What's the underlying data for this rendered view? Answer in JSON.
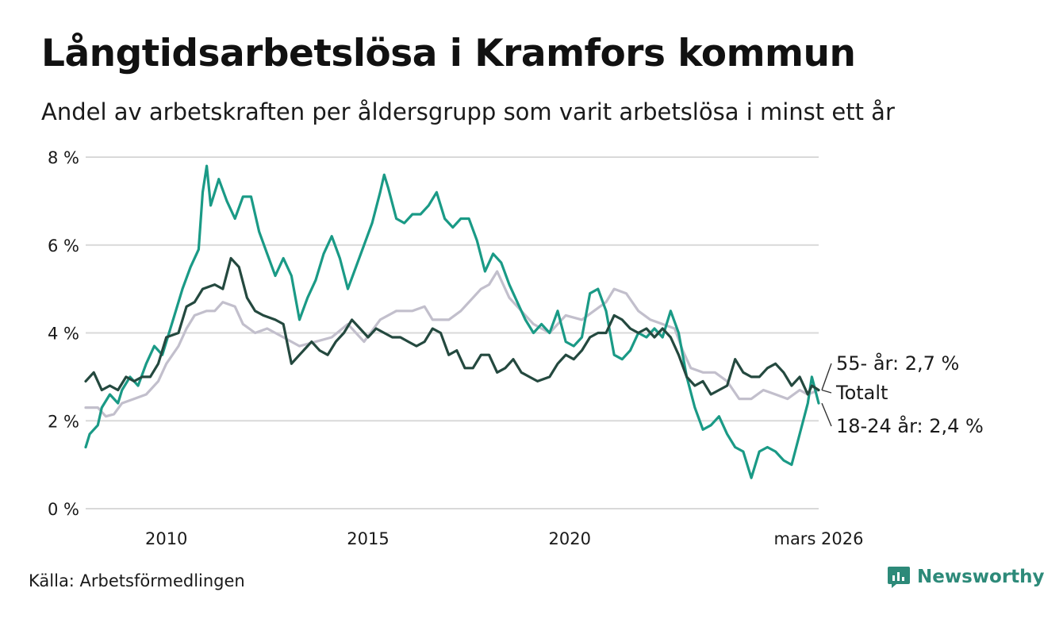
{
  "header": {
    "title": "Långtidsarbetslösa i Kramfors kommun",
    "subtitle": "Andel av arbetskraften per åldersgrupp som varit arbetslösa i minst ett år"
  },
  "footer": {
    "source": "Källa: Arbetsförmedlingen",
    "brand": "Newsworthy"
  },
  "colors": {
    "youth": "#1a9a86",
    "total": "#24493f",
    "senior": "#c2bfcc",
    "grid": "#d9d9d9",
    "brand": "#2d8a79"
  },
  "chart_data": {
    "type": "line",
    "title": "Långtidsarbetslösa i Kramfors kommun",
    "subtitle": "Andel av arbetskraften per åldersgrupp som varit arbetslösa i minst ett år",
    "xlim": [
      2008.0,
      2026.17
    ],
    "ylim": [
      0,
      8
    ],
    "grid": true,
    "y_ticks": [
      {
        "value": 0,
        "label": "0 %"
      },
      {
        "value": 2,
        "label": "2 %"
      },
      {
        "value": 4,
        "label": "4 %"
      },
      {
        "value": 6,
        "label": "6 %"
      },
      {
        "value": 8,
        "label": "8 %"
      }
    ],
    "x_ticks": [
      {
        "value": 2010,
        "label": "2010"
      },
      {
        "value": 2015,
        "label": "2015"
      },
      {
        "value": 2020,
        "label": "2020"
      },
      {
        "value": 2026.17,
        "label": "mars 2026"
      }
    ],
    "series": [
      {
        "name": "55- år",
        "end_label": "55- år: 2,7 %",
        "color_key": "senior",
        "points": [
          [
            2008.0,
            2.3
          ],
          [
            2008.3,
            2.3
          ],
          [
            2008.5,
            2.1
          ],
          [
            2008.7,
            2.15
          ],
          [
            2008.9,
            2.4
          ],
          [
            2009.2,
            2.5
          ],
          [
            2009.5,
            2.6
          ],
          [
            2009.8,
            2.9
          ],
          [
            2010.0,
            3.3
          ],
          [
            2010.3,
            3.7
          ],
          [
            2010.5,
            4.1
          ],
          [
            2010.7,
            4.4
          ],
          [
            2011.0,
            4.5
          ],
          [
            2011.2,
            4.5
          ],
          [
            2011.4,
            4.7
          ],
          [
            2011.7,
            4.6
          ],
          [
            2011.9,
            4.2
          ],
          [
            2012.2,
            4.0
          ],
          [
            2012.5,
            4.1
          ],
          [
            2012.9,
            3.9
          ],
          [
            2013.3,
            3.7
          ],
          [
            2013.7,
            3.8
          ],
          [
            2014.1,
            3.9
          ],
          [
            2014.5,
            4.2
          ],
          [
            2014.9,
            3.8
          ],
          [
            2015.3,
            4.3
          ],
          [
            2015.7,
            4.5
          ],
          [
            2016.1,
            4.5
          ],
          [
            2016.4,
            4.6
          ],
          [
            2016.6,
            4.3
          ],
          [
            2017.0,
            4.3
          ],
          [
            2017.3,
            4.5
          ],
          [
            2017.6,
            4.8
          ],
          [
            2017.8,
            5.0
          ],
          [
            2018.0,
            5.1
          ],
          [
            2018.2,
            5.4
          ],
          [
            2018.5,
            4.8
          ],
          [
            2018.8,
            4.5
          ],
          [
            2019.1,
            4.2
          ],
          [
            2019.5,
            4.0
          ],
          [
            2019.9,
            4.4
          ],
          [
            2020.3,
            4.3
          ],
          [
            2020.6,
            4.5
          ],
          [
            2020.9,
            4.7
          ],
          [
            2021.1,
            5.0
          ],
          [
            2021.4,
            4.9
          ],
          [
            2021.7,
            4.5
          ],
          [
            2022.0,
            4.3
          ],
          [
            2022.3,
            4.2
          ],
          [
            2022.6,
            4.1
          ],
          [
            2022.8,
            3.6
          ],
          [
            2023.0,
            3.2
          ],
          [
            2023.3,
            3.1
          ],
          [
            2023.6,
            3.1
          ],
          [
            2023.9,
            2.9
          ],
          [
            2024.2,
            2.5
          ],
          [
            2024.5,
            2.5
          ],
          [
            2024.8,
            2.7
          ],
          [
            2025.1,
            2.6
          ],
          [
            2025.4,
            2.5
          ],
          [
            2025.7,
            2.7
          ],
          [
            2025.9,
            2.6
          ],
          [
            2026.17,
            2.7
          ]
        ]
      },
      {
        "name": "18-24 år",
        "end_label": "18-24 år: 2,4 %",
        "color_key": "youth",
        "points": [
          [
            2008.0,
            1.4
          ],
          [
            2008.1,
            1.7
          ],
          [
            2008.3,
            1.9
          ],
          [
            2008.4,
            2.3
          ],
          [
            2008.6,
            2.6
          ],
          [
            2008.8,
            2.4
          ],
          [
            2008.9,
            2.7
          ],
          [
            2009.1,
            3.0
          ],
          [
            2009.3,
            2.8
          ],
          [
            2009.5,
            3.3
          ],
          [
            2009.7,
            3.7
          ],
          [
            2009.9,
            3.5
          ],
          [
            2010.0,
            3.8
          ],
          [
            2010.2,
            4.4
          ],
          [
            2010.4,
            5.0
          ],
          [
            2010.6,
            5.5
          ],
          [
            2010.8,
            5.9
          ],
          [
            2010.9,
            7.2
          ],
          [
            2011.0,
            7.8
          ],
          [
            2011.1,
            6.9
          ],
          [
            2011.3,
            7.5
          ],
          [
            2011.5,
            7.0
          ],
          [
            2011.7,
            6.6
          ],
          [
            2011.9,
            7.1
          ],
          [
            2012.1,
            7.1
          ],
          [
            2012.3,
            6.3
          ],
          [
            2012.5,
            5.8
          ],
          [
            2012.7,
            5.3
          ],
          [
            2012.9,
            5.7
          ],
          [
            2013.1,
            5.3
          ],
          [
            2013.3,
            4.3
          ],
          [
            2013.5,
            4.8
          ],
          [
            2013.7,
            5.2
          ],
          [
            2013.9,
            5.8
          ],
          [
            2014.1,
            6.2
          ],
          [
            2014.3,
            5.7
          ],
          [
            2014.5,
            5.0
          ],
          [
            2014.7,
            5.5
          ],
          [
            2014.9,
            6.0
          ],
          [
            2015.1,
            6.5
          ],
          [
            2015.3,
            7.2
          ],
          [
            2015.4,
            7.6
          ],
          [
            2015.5,
            7.3
          ],
          [
            2015.7,
            6.6
          ],
          [
            2015.9,
            6.5
          ],
          [
            2016.1,
            6.7
          ],
          [
            2016.3,
            6.7
          ],
          [
            2016.5,
            6.9
          ],
          [
            2016.7,
            7.2
          ],
          [
            2016.9,
            6.6
          ],
          [
            2017.1,
            6.4
          ],
          [
            2017.3,
            6.6
          ],
          [
            2017.5,
            6.6
          ],
          [
            2017.7,
            6.1
          ],
          [
            2017.9,
            5.4
          ],
          [
            2018.1,
            5.8
          ],
          [
            2018.3,
            5.6
          ],
          [
            2018.5,
            5.1
          ],
          [
            2018.7,
            4.7
          ],
          [
            2018.9,
            4.3
          ],
          [
            2019.1,
            4.0
          ],
          [
            2019.3,
            4.2
          ],
          [
            2019.5,
            4.0
          ],
          [
            2019.7,
            4.5
          ],
          [
            2019.9,
            3.8
          ],
          [
            2020.1,
            3.7
          ],
          [
            2020.3,
            3.9
          ],
          [
            2020.5,
            4.9
          ],
          [
            2020.7,
            5.0
          ],
          [
            2020.9,
            4.5
          ],
          [
            2021.1,
            3.5
          ],
          [
            2021.3,
            3.4
          ],
          [
            2021.5,
            3.6
          ],
          [
            2021.7,
            4.0
          ],
          [
            2021.9,
            3.9
          ],
          [
            2022.1,
            4.1
          ],
          [
            2022.3,
            3.9
          ],
          [
            2022.5,
            4.5
          ],
          [
            2022.7,
            4.0
          ],
          [
            2022.9,
            3.0
          ],
          [
            2023.1,
            2.3
          ],
          [
            2023.3,
            1.8
          ],
          [
            2023.5,
            1.9
          ],
          [
            2023.7,
            2.1
          ],
          [
            2023.9,
            1.7
          ],
          [
            2024.1,
            1.4
          ],
          [
            2024.3,
            1.3
          ],
          [
            2024.5,
            0.7
          ],
          [
            2024.7,
            1.3
          ],
          [
            2024.9,
            1.4
          ],
          [
            2025.1,
            1.3
          ],
          [
            2025.3,
            1.1
          ],
          [
            2025.5,
            1.0
          ],
          [
            2025.7,
            1.7
          ],
          [
            2025.9,
            2.4
          ],
          [
            2026.0,
            3.0
          ],
          [
            2026.17,
            2.4
          ]
        ]
      },
      {
        "name": "Totalt",
        "end_label": "Totalt",
        "color_key": "total",
        "points": [
          [
            2008.0,
            2.9
          ],
          [
            2008.2,
            3.1
          ],
          [
            2008.4,
            2.7
          ],
          [
            2008.6,
            2.8
          ],
          [
            2008.8,
            2.7
          ],
          [
            2009.0,
            3.0
          ],
          [
            2009.2,
            2.9
          ],
          [
            2009.4,
            3.0
          ],
          [
            2009.6,
            3.0
          ],
          [
            2009.8,
            3.3
          ],
          [
            2010.0,
            3.9
          ],
          [
            2010.3,
            4.0
          ],
          [
            2010.5,
            4.6
          ],
          [
            2010.7,
            4.7
          ],
          [
            2010.9,
            5.0
          ],
          [
            2011.2,
            5.1
          ],
          [
            2011.4,
            5.0
          ],
          [
            2011.6,
            5.7
          ],
          [
            2011.8,
            5.5
          ],
          [
            2012.0,
            4.8
          ],
          [
            2012.2,
            4.5
          ],
          [
            2012.4,
            4.4
          ],
          [
            2012.7,
            4.3
          ],
          [
            2012.9,
            4.2
          ],
          [
            2013.1,
            3.3
          ],
          [
            2013.3,
            3.5
          ],
          [
            2013.6,
            3.8
          ],
          [
            2013.8,
            3.6
          ],
          [
            2014.0,
            3.5
          ],
          [
            2014.2,
            3.8
          ],
          [
            2014.4,
            4.0
          ],
          [
            2014.6,
            4.3
          ],
          [
            2014.8,
            4.1
          ],
          [
            2015.0,
            3.9
          ],
          [
            2015.2,
            4.1
          ],
          [
            2015.4,
            4.0
          ],
          [
            2015.6,
            3.9
          ],
          [
            2015.8,
            3.9
          ],
          [
            2016.0,
            3.8
          ],
          [
            2016.2,
            3.7
          ],
          [
            2016.4,
            3.8
          ],
          [
            2016.6,
            4.1
          ],
          [
            2016.8,
            4.0
          ],
          [
            2017.0,
            3.5
          ],
          [
            2017.2,
            3.6
          ],
          [
            2017.4,
            3.2
          ],
          [
            2017.6,
            3.2
          ],
          [
            2017.8,
            3.5
          ],
          [
            2018.0,
            3.5
          ],
          [
            2018.2,
            3.1
          ],
          [
            2018.4,
            3.2
          ],
          [
            2018.6,
            3.4
          ],
          [
            2018.8,
            3.1
          ],
          [
            2019.0,
            3.0
          ],
          [
            2019.2,
            2.9
          ],
          [
            2019.5,
            3.0
          ],
          [
            2019.7,
            3.3
          ],
          [
            2019.9,
            3.5
          ],
          [
            2020.1,
            3.4
          ],
          [
            2020.3,
            3.6
          ],
          [
            2020.5,
            3.9
          ],
          [
            2020.7,
            4.0
          ],
          [
            2020.9,
            4.0
          ],
          [
            2021.1,
            4.4
          ],
          [
            2021.3,
            4.3
          ],
          [
            2021.5,
            4.1
          ],
          [
            2021.7,
            4.0
          ],
          [
            2021.9,
            4.1
          ],
          [
            2022.1,
            3.9
          ],
          [
            2022.3,
            4.1
          ],
          [
            2022.5,
            3.9
          ],
          [
            2022.7,
            3.5
          ],
          [
            2022.9,
            3.0
          ],
          [
            2023.1,
            2.8
          ],
          [
            2023.3,
            2.9
          ],
          [
            2023.5,
            2.6
          ],
          [
            2023.7,
            2.7
          ],
          [
            2023.9,
            2.8
          ],
          [
            2024.1,
            3.4
          ],
          [
            2024.3,
            3.1
          ],
          [
            2024.5,
            3.0
          ],
          [
            2024.7,
            3.0
          ],
          [
            2024.9,
            3.2
          ],
          [
            2025.1,
            3.3
          ],
          [
            2025.3,
            3.1
          ],
          [
            2025.5,
            2.8
          ],
          [
            2025.7,
            3.0
          ],
          [
            2025.9,
            2.6
          ],
          [
            2026.0,
            2.8
          ],
          [
            2026.17,
            2.7
          ]
        ]
      }
    ]
  }
}
